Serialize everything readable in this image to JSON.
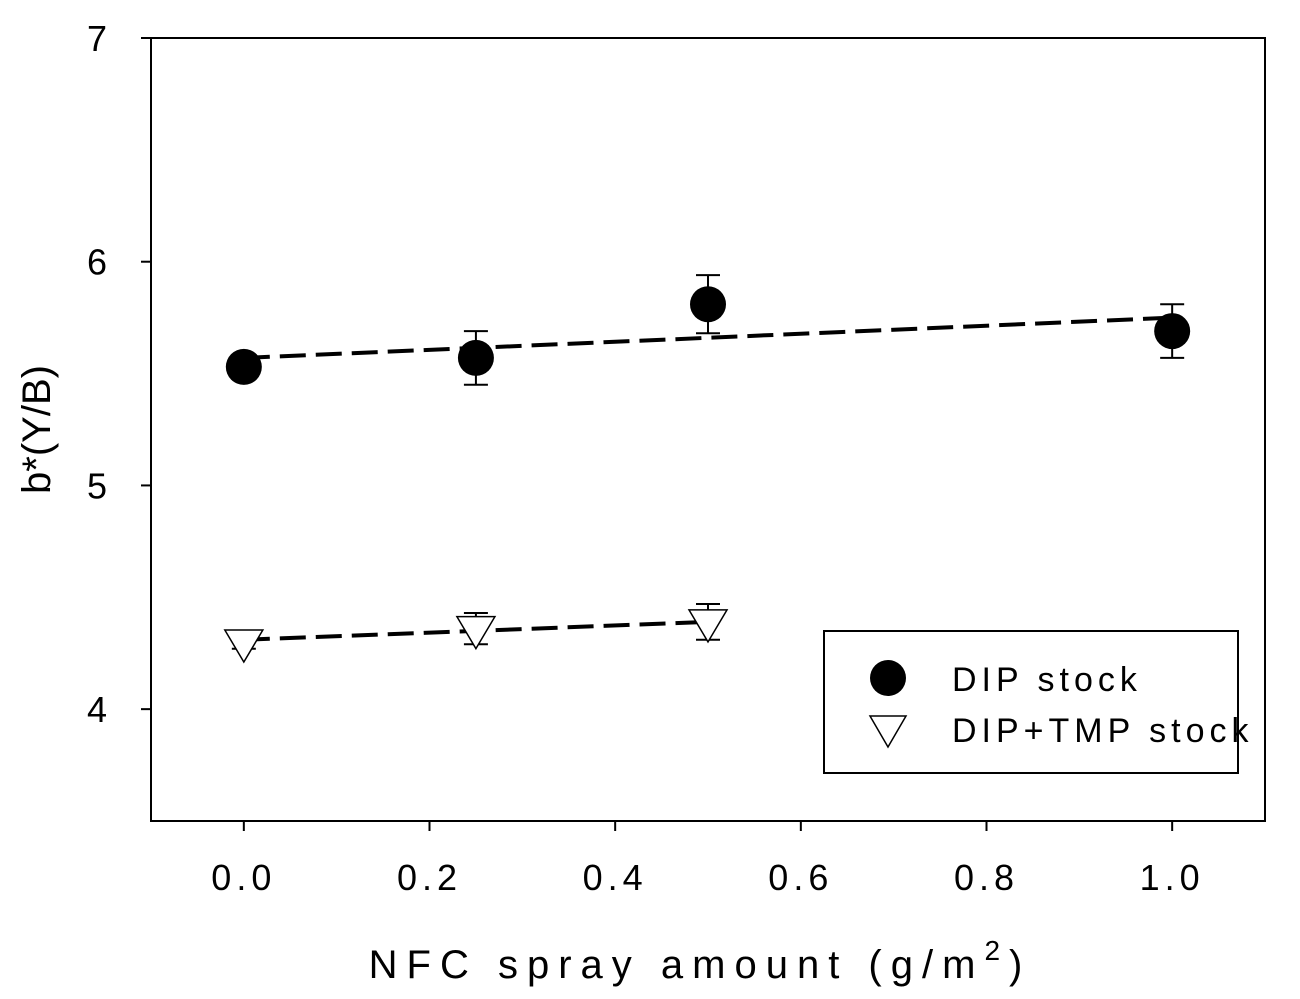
{
  "chart_data": {
    "type": "scatter",
    "xlabel": "NFC spray amount (g/m",
    "xlabel_superscript": "2",
    "xlabel_close": ")",
    "ylabel": "b*(Y/B)",
    "xlim": [
      -0.1,
      1.1
    ],
    "ylim": [
      3.5,
      7.0
    ],
    "x_ticks": [
      0.0,
      0.2,
      0.4,
      0.6,
      0.8,
      1.0
    ],
    "x_tick_labels": [
      "0.0",
      "0.2",
      "0.4",
      "0.6",
      "0.8",
      "1.0"
    ],
    "y_ticks": [
      4,
      5,
      6,
      7
    ],
    "y_tick_labels": [
      "4",
      "5",
      "6",
      "7"
    ],
    "grid": false,
    "legend_position": "bottom-right",
    "series": [
      {
        "name": "DIP stock",
        "marker": "filled-circle",
        "color": "#000000",
        "x": [
          0.0,
          0.25,
          0.5,
          1.0
        ],
        "y": [
          5.53,
          5.57,
          5.81,
          5.69
        ],
        "error": [
          0.0,
          0.12,
          0.13,
          0.12
        ],
        "trendline": {
          "x": [
            0.0,
            1.0
          ],
          "y": [
            5.57,
            5.75
          ]
        }
      },
      {
        "name": "DIP+TMP stock",
        "marker": "open-triangle-down",
        "color": "#000000",
        "x": [
          0.0,
          0.25,
          0.5
        ],
        "y": [
          4.3,
          4.36,
          4.39
        ],
        "error": [
          0.03,
          0.07,
          0.08
        ],
        "trendline": {
          "x": [
            0.0,
            0.5
          ],
          "y": [
            4.31,
            4.39
          ]
        }
      }
    ]
  }
}
